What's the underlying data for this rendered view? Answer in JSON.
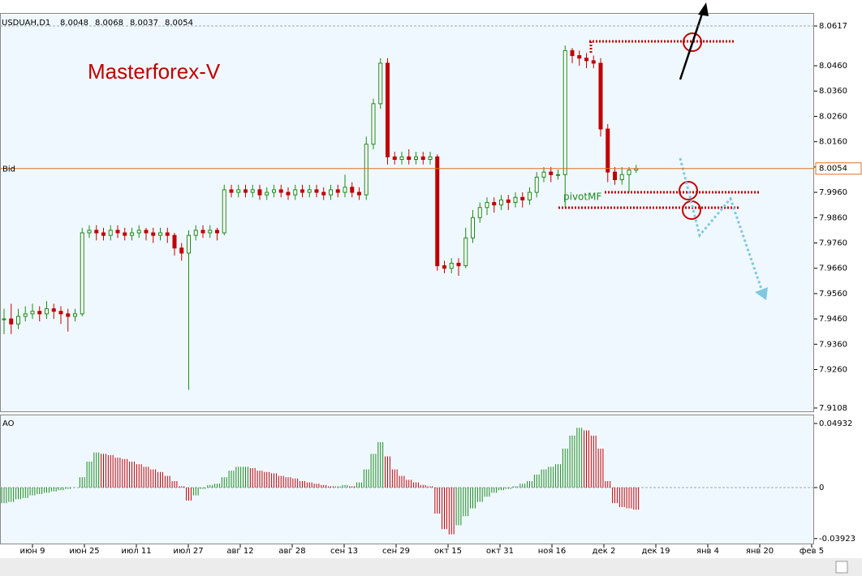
{
  "chart_data": {
    "type": "candlestick",
    "symbol": "USDUAH,D1",
    "header_values": [
      8.0048,
      8.0068,
      8.0037,
      8.0054
    ],
    "title": "Masterforex-V",
    "annotation": "pivotMF",
    "bid": {
      "label": "Bid",
      "value": 8.0054
    },
    "up_color": "#1a8a1a",
    "down_color": "#c00000",
    "ylim": [
      7.9095,
      8.0662
    ],
    "yticks": [
      8.0617,
      {
        "value": 8.046,
        "label": "8.0460"
      },
      {
        "value": 8.036,
        "label": "8.0360"
      },
      {
        "value": 8.026,
        "label": "8.0260"
      },
      {
        "value": 8.016,
        "label": "8.0160"
      },
      {
        "value": 8.006,
        "label": "8.0060"
      },
      {
        "value": 7.996,
        "label": "7.9960"
      },
      {
        "value": 7.986,
        "label": "7.9860"
      },
      {
        "value": 7.976,
        "label": "7.9760"
      },
      {
        "value": 7.966,
        "label": "7.9660"
      },
      {
        "value": 7.956,
        "label": "7.9560"
      },
      {
        "value": 7.946,
        "label": "7.9460"
      },
      {
        "value": 7.936,
        "label": "7.9360"
      },
      {
        "value": 7.926,
        "label": "7.9260"
      },
      7.9108
    ],
    "dates": [
      "июн 9",
      "июн 25",
      "июл 11",
      "июл 27",
      "авг 12",
      "авг 28",
      "сен 13",
      "сен 29",
      "окт 15",
      "окт 31",
      "ноя 16",
      "дек 2",
      "дек 19",
      "янв 4",
      "янв 20",
      "фев 5"
    ],
    "close": [
      7.946,
      7.944,
      7.947,
      7.948,
      7.949,
      7.948,
      7.95,
      7.949,
      7.948,
      7.947,
      7.948,
      7.98,
      7.981,
      7.98,
      7.979,
      7.981,
      7.98,
      7.979,
      7.98,
      7.981,
      7.98,
      7.979,
      7.98,
      7.979,
      7.974,
      7.972,
      7.979,
      7.981,
      7.98,
      7.981,
      7.98,
      7.997,
      7.996,
      7.997,
      7.996,
      7.997,
      7.995,
      7.996,
      7.997,
      7.996,
      7.995,
      7.997,
      7.996,
      7.997,
      7.996,
      7.995,
      7.997,
      7.996,
      7.998,
      7.996,
      7.995,
      8.015,
      8.031,
      8.047,
      8.01,
      8.009,
      8.01,
      8.009,
      8.01,
      8.009,
      8.01,
      7.967,
      7.966,
      7.968,
      7.967,
      7.978,
      7.986,
      7.99,
      7.992,
      7.991,
      7.993,
      7.992,
      7.994,
      7.993,
      7.996,
      8.002,
      8.004,
      8.003,
      8.003,
      8.052,
      8.05,
      8.049,
      8.048,
      8.047,
      8.021,
      8.004,
      8.001,
      8.003,
      8.0048,
      8.0054
    ],
    "high": [
      7.95,
      7.952,
      7.95,
      7.951,
      7.952,
      7.951,
      7.953,
      7.952,
      7.951,
      7.95,
      7.95,
      7.982,
      7.983,
      7.983,
      7.982,
      7.983,
      7.983,
      7.982,
      7.982,
      7.983,
      7.982,
      7.982,
      7.982,
      7.982,
      7.98,
      7.976,
      7.981,
      7.983,
      7.983,
      7.983,
      7.982,
      7.999,
      7.999,
      7.999,
      7.999,
      7.999,
      7.999,
      7.998,
      7.999,
      7.999,
      7.998,
      7.999,
      7.999,
      7.999,
      7.999,
      7.998,
      7.999,
      7.999,
      8.003,
      8.0,
      7.998,
      8.018,
      8.033,
      8.049,
      8.049,
      8.012,
      8.012,
      8.013,
      8.012,
      8.012,
      8.012,
      8.011,
      7.969,
      7.97,
      7.97,
      7.982,
      7.989,
      7.992,
      7.994,
      7.994,
      7.995,
      7.995,
      7.996,
      7.996,
      7.998,
      8.004,
      8.006,
      8.006,
      8.005,
      8.054,
      8.053,
      8.052,
      8.051,
      8.05,
      8.049,
      8.023,
      8.006,
      8.006,
      8.006,
      8.0068
    ],
    "low": [
      7.94,
      7.94,
      7.942,
      7.945,
      7.946,
      7.945,
      7.946,
      7.946,
      7.944,
      7.941,
      7.945,
      7.947,
      7.978,
      7.977,
      7.977,
      7.977,
      7.978,
      7.977,
      7.977,
      7.978,
      7.977,
      7.976,
      7.977,
      7.976,
      7.971,
      7.969,
      7.918,
      7.977,
      7.978,
      7.978,
      7.977,
      7.979,
      7.994,
      7.994,
      7.994,
      7.994,
      7.993,
      7.993,
      7.994,
      7.994,
      7.993,
      7.993,
      7.994,
      7.994,
      7.994,
      7.993,
      7.993,
      7.994,
      7.994,
      7.994,
      7.993,
      7.993,
      8.013,
      8.029,
      8.007,
      8.007,
      8.007,
      8.007,
      8.007,
      8.007,
      8.007,
      7.965,
      7.964,
      7.964,
      7.963,
      7.966,
      7.976,
      7.984,
      7.987,
      7.988,
      7.989,
      7.989,
      7.99,
      7.99,
      7.991,
      7.994,
      8.0,
      8.0,
      8.001,
      7.99,
      8.047,
      8.046,
      8.045,
      8.045,
      8.018,
      8.0,
      7.999,
      7.999,
      7.996,
      8.0037
    ],
    "indicator": {
      "name": "AO",
      "ylim": [
        -0.04307,
        0.05494
      ],
      "yticks": [
        0.04932,
        0,
        -0.03923
      ],
      "values": [
        -0.012,
        -0.011,
        -0.009,
        -0.008,
        -0.006,
        -0.005,
        -0.004,
        -0.003,
        -0.002,
        -0.001,
        0.0,
        0.008,
        0.02,
        0.027,
        0.026,
        0.025,
        0.023,
        0.022,
        0.02,
        0.018,
        0.016,
        0.014,
        0.012,
        0.009,
        0.005,
        0.001,
        -0.01,
        -0.006,
        -0.001,
        0.002,
        0.003,
        0.008,
        0.013,
        0.016,
        0.016,
        0.015,
        0.013,
        0.012,
        0.011,
        0.009,
        0.008,
        0.007,
        0.005,
        0.004,
        0.003,
        0.002,
        0.001,
        0.001,
        0.002,
        0.001,
        0.004,
        0.014,
        0.026,
        0.035,
        0.024,
        0.014,
        0.009,
        0.006,
        0.004,
        0.002,
        0.001,
        -0.02,
        -0.032,
        -0.036,
        -0.029,
        -0.022,
        -0.016,
        -0.011,
        -0.007,
        -0.004,
        -0.002,
        -0.001,
        0.001,
        0.003,
        0.005,
        0.01,
        0.014,
        0.016,
        0.018,
        0.03,
        0.04,
        0.046,
        0.044,
        0.04,
        0.03,
        0.005,
        -0.012,
        -0.015,
        -0.016,
        -0.017
      ]
    }
  }
}
